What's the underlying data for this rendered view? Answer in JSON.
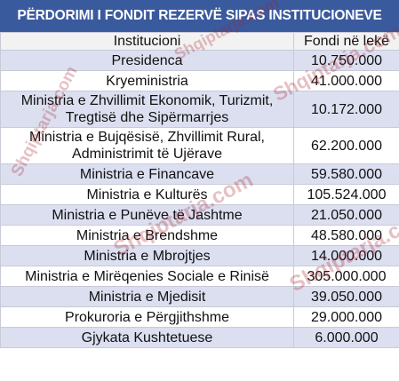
{
  "title": "PËRDORIMI I FONDIT REZERVË SIPAS INSTITUCIONEVE",
  "table": {
    "headers": [
      "Institucioni",
      "Fondi në lekë"
    ],
    "rows": [
      {
        "institution": "Presidenca",
        "amount": "10.750.000"
      },
      {
        "institution": "Kryeministria",
        "amount": "41.000.000"
      },
      {
        "institution": "Ministria e Zhvillimit Ekonomik, Turizmit, Tregtisë dhe Sipërmarrjes",
        "amount": "10.172.000"
      },
      {
        "institution": "Ministria e Bujqësisë, Zhvillimit Rural, Administrimit të Ujërave",
        "amount": "62.200.000"
      },
      {
        "institution": "Ministria e Financave",
        "amount": "59.580.000"
      },
      {
        "institution": "Ministria e Kulturës",
        "amount": "105.524.000"
      },
      {
        "institution": "Ministria e Punëve të Jashtme",
        "amount": "21.050.000"
      },
      {
        "institution": "Ministria e Brendshme",
        "amount": "48.580.000"
      },
      {
        "institution": "Ministria e Mbrojtjes",
        "amount": "14.000.000"
      },
      {
        "institution": "Ministria e Mirëqenies Sociale e Rinisë",
        "amount": "305.000.000"
      },
      {
        "institution": "Ministria e Mjedisit",
        "amount": "39.050.000"
      },
      {
        "institution": "Prokuroria e Përgjithshme",
        "amount": "29.000.000"
      },
      {
        "institution": "Gjykata Kushtetuese",
        "amount": "6.000.000"
      }
    ]
  },
  "watermark": "Shqiptarja.com"
}
